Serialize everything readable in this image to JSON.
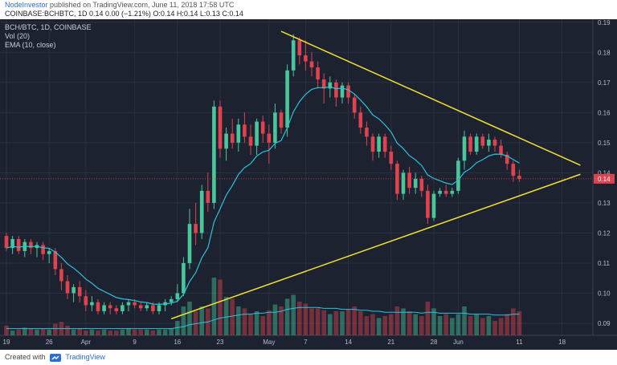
{
  "header": {
    "author": "NodeInvestor",
    "published_text": "published on TradingView.com, June 11, 2018 17:58 UTC",
    "ohlc_line": "COINBASE:BCHBTC, 1D 0.14 0.00 (−1.21%) O:0.14 H:0.14 L:0.13 C:0.14"
  },
  "legend": {
    "symbol": "BCH/BTC, 1D, COINBASE",
    "vol": "Vol (20)",
    "ema": "EMA (10, close)"
  },
  "footer": {
    "created_with": "Created with",
    "brand": "TradingView",
    "logo_icon": "tradingview-logo-icon"
  },
  "colors": {
    "background": "#1d2231",
    "up": "#49c69b",
    "down": "#e0434e",
    "ema": "#29c4d9",
    "trendline": "#f0e130",
    "last_price": "#e0434e"
  },
  "chart_data": {
    "type": "candlestick",
    "price_axis": {
      "ticks": [
        "0.19",
        "0.18",
        "0.17",
        "0.16",
        "0.15",
        "0.14",
        "0.13",
        "0.12",
        "0.11",
        "0.10",
        "0.09"
      ],
      "ylim": [
        0.086,
        0.191
      ],
      "last_price_label": "0.14"
    },
    "time_axis": {
      "ticks": [
        {
          "label": "19",
          "i": 0
        },
        {
          "label": "26",
          "i": 7
        },
        {
          "label": "Apr",
          "i": 13
        },
        {
          "label": "9",
          "i": 21
        },
        {
          "label": "16",
          "i": 28
        },
        {
          "label": "23",
          "i": 35
        },
        {
          "label": "May",
          "i": 43
        },
        {
          "label": "7",
          "i": 49
        },
        {
          "label": "14",
          "i": 56
        },
        {
          "label": "21",
          "i": 63
        },
        {
          "label": "28",
          "i": 70
        },
        {
          "label": "Jun",
          "i": 74
        },
        {
          "label": "11",
          "i": 84
        },
        {
          "label": "18",
          "i": 91
        }
      ]
    },
    "ohlc": [
      [
        0.119,
        0.12,
        0.114,
        0.115
      ],
      [
        0.115,
        0.119,
        0.113,
        0.118
      ],
      [
        0.118,
        0.119,
        0.113,
        0.114
      ],
      [
        0.114,
        0.118,
        0.112,
        0.117
      ],
      [
        0.117,
        0.118,
        0.113,
        0.115
      ],
      [
        0.115,
        0.117,
        0.112,
        0.116
      ],
      [
        0.116,
        0.117,
        0.111,
        0.113
      ],
      [
        0.113,
        0.115,
        0.11,
        0.114
      ],
      [
        0.114,
        0.115,
        0.106,
        0.108
      ],
      [
        0.108,
        0.11,
        0.101,
        0.104
      ],
      [
        0.104,
        0.106,
        0.098,
        0.1
      ],
      [
        0.1,
        0.103,
        0.097,
        0.102
      ],
      [
        0.102,
        0.104,
        0.097,
        0.099
      ],
      [
        0.099,
        0.101,
        0.094,
        0.096
      ],
      [
        0.096,
        0.099,
        0.094,
        0.097
      ],
      [
        0.097,
        0.098,
        0.093,
        0.094
      ],
      [
        0.094,
        0.097,
        0.093,
        0.096
      ],
      [
        0.096,
        0.097,
        0.093,
        0.095
      ],
      [
        0.095,
        0.096,
        0.093,
        0.094
      ],
      [
        0.094,
        0.097,
        0.093,
        0.096
      ],
      [
        0.096,
        0.098,
        0.094,
        0.097
      ],
      [
        0.097,
        0.098,
        0.095,
        0.096
      ],
      [
        0.096,
        0.097,
        0.094,
        0.095
      ],
      [
        0.095,
        0.097,
        0.094,
        0.096
      ],
      [
        0.096,
        0.097,
        0.093,
        0.094
      ],
      [
        0.094,
        0.097,
        0.093,
        0.096
      ],
      [
        0.096,
        0.098,
        0.094,
        0.097
      ],
      [
        0.097,
        0.099,
        0.096,
        0.098
      ],
      [
        0.098,
        0.103,
        0.097,
        0.1
      ],
      [
        0.1,
        0.112,
        0.099,
        0.11
      ],
      [
        0.11,
        0.128,
        0.108,
        0.123
      ],
      [
        0.123,
        0.13,
        0.116,
        0.12
      ],
      [
        0.12,
        0.136,
        0.118,
        0.134
      ],
      [
        0.134,
        0.14,
        0.127,
        0.13
      ],
      [
        0.13,
        0.164,
        0.128,
        0.162
      ],
      [
        0.162,
        0.164,
        0.145,
        0.148
      ],
      [
        0.148,
        0.155,
        0.144,
        0.153
      ],
      [
        0.153,
        0.158,
        0.148,
        0.15
      ],
      [
        0.15,
        0.158,
        0.147,
        0.156
      ],
      [
        0.156,
        0.16,
        0.15,
        0.152
      ],
      [
        0.152,
        0.156,
        0.146,
        0.149
      ],
      [
        0.149,
        0.158,
        0.146,
        0.157
      ],
      [
        0.157,
        0.159,
        0.15,
        0.153
      ],
      [
        0.153,
        0.156,
        0.143,
        0.15
      ],
      [
        0.15,
        0.163,
        0.148,
        0.16
      ],
      [
        0.16,
        0.161,
        0.153,
        0.155
      ],
      [
        0.155,
        0.176,
        0.152,
        0.174
      ],
      [
        0.174,
        0.186,
        0.172,
        0.184
      ],
      [
        0.184,
        0.185,
        0.176,
        0.179
      ],
      [
        0.179,
        0.184,
        0.174,
        0.177
      ],
      [
        0.177,
        0.18,
        0.172,
        0.175
      ],
      [
        0.175,
        0.177,
        0.168,
        0.171
      ],
      [
        0.171,
        0.173,
        0.163,
        0.168
      ],
      [
        0.168,
        0.172,
        0.165,
        0.17
      ],
      [
        0.17,
        0.171,
        0.162,
        0.165
      ],
      [
        0.165,
        0.17,
        0.163,
        0.169
      ],
      [
        0.169,
        0.17,
        0.163,
        0.165
      ],
      [
        0.165,
        0.166,
        0.158,
        0.16
      ],
      [
        0.16,
        0.162,
        0.153,
        0.155
      ],
      [
        0.155,
        0.157,
        0.149,
        0.152
      ],
      [
        0.152,
        0.153,
        0.144,
        0.147
      ],
      [
        0.147,
        0.153,
        0.145,
        0.152
      ],
      [
        0.152,
        0.153,
        0.145,
        0.147
      ],
      [
        0.147,
        0.149,
        0.141,
        0.143
      ],
      [
        0.143,
        0.144,
        0.131,
        0.133
      ],
      [
        0.133,
        0.141,
        0.131,
        0.14
      ],
      [
        0.14,
        0.142,
        0.133,
        0.135
      ],
      [
        0.135,
        0.14,
        0.133,
        0.138
      ],
      [
        0.138,
        0.139,
        0.132,
        0.134
      ],
      [
        0.134,
        0.136,
        0.123,
        0.125
      ],
      [
        0.125,
        0.134,
        0.124,
        0.133
      ],
      [
        0.133,
        0.135,
        0.132,
        0.134
      ],
      [
        0.134,
        0.136,
        0.132,
        0.133
      ],
      [
        0.133,
        0.135,
        0.132,
        0.134
      ],
      [
        0.134,
        0.145,
        0.133,
        0.144
      ],
      [
        0.144,
        0.154,
        0.141,
        0.152
      ],
      [
        0.152,
        0.153,
        0.146,
        0.147
      ],
      [
        0.147,
        0.153,
        0.146,
        0.152
      ],
      [
        0.152,
        0.153,
        0.148,
        0.149
      ],
      [
        0.149,
        0.153,
        0.147,
        0.151
      ],
      [
        0.151,
        0.152,
        0.147,
        0.149
      ],
      [
        0.149,
        0.151,
        0.145,
        0.146
      ],
      [
        0.146,
        0.147,
        0.141,
        0.143
      ],
      [
        0.143,
        0.144,
        0.137,
        0.139
      ],
      [
        0.139,
        0.141,
        0.137,
        0.138
      ]
    ],
    "volume": [
      0.1,
      0.05,
      0.06,
      0.08,
      0.07,
      0.06,
      0.07,
      0.06,
      0.12,
      0.14,
      0.1,
      0.06,
      0.07,
      0.05,
      0.06,
      0.05,
      0.06,
      0.05,
      0.05,
      0.06,
      0.07,
      0.06,
      0.06,
      0.06,
      0.05,
      0.06,
      0.06,
      0.07,
      0.15,
      0.3,
      0.35,
      0.25,
      0.3,
      0.28,
      0.6,
      0.58,
      0.4,
      0.38,
      0.3,
      0.28,
      0.22,
      0.25,
      0.2,
      0.26,
      0.32,
      0.3,
      0.38,
      0.42,
      0.35,
      0.33,
      0.28,
      0.28,
      0.26,
      0.22,
      0.25,
      0.25,
      0.27,
      0.3,
      0.25,
      0.2,
      0.22,
      0.18,
      0.2,
      0.22,
      0.3,
      0.28,
      0.25,
      0.22,
      0.2,
      0.35,
      0.28,
      0.2,
      0.22,
      0.18,
      0.22,
      0.3,
      0.2,
      0.22,
      0.18,
      0.2,
      0.15,
      0.18,
      0.22,
      0.28,
      0.25
    ],
    "volume_ma": [
      0.07,
      0.07,
      0.07,
      0.07,
      0.07,
      0.07,
      0.07,
      0.07,
      0.07,
      0.07,
      0.07,
      0.07,
      0.07,
      0.07,
      0.07,
      0.07,
      0.07,
      0.07,
      0.07,
      0.07,
      0.07,
      0.07,
      0.07,
      0.07,
      0.07,
      0.07,
      0.07,
      0.07,
      0.08,
      0.09,
      0.11,
      0.12,
      0.13,
      0.14,
      0.16,
      0.18,
      0.19,
      0.2,
      0.21,
      0.22,
      0.22,
      0.23,
      0.23,
      0.24,
      0.24,
      0.25,
      0.27,
      0.28,
      0.29,
      0.29,
      0.29,
      0.29,
      0.28,
      0.28,
      0.28,
      0.27,
      0.27,
      0.27,
      0.26,
      0.26,
      0.25,
      0.25,
      0.24,
      0.24,
      0.24,
      0.24,
      0.24,
      0.24,
      0.23,
      0.24,
      0.24,
      0.23,
      0.23,
      0.23,
      0.23,
      0.23,
      0.22,
      0.22,
      0.22,
      0.22,
      0.21,
      0.21,
      0.21,
      0.22,
      0.22
    ],
    "trendlines": [
      {
        "name": "upper",
        "from": {
          "i": 45,
          "price": 0.187
        },
        "to": {
          "i": 94,
          "price": 0.1425
        }
      },
      {
        "name": "lower",
        "from": {
          "i": 27,
          "price": 0.0915
        },
        "to": {
          "i": 94,
          "price": 0.1395
        }
      }
    ]
  }
}
